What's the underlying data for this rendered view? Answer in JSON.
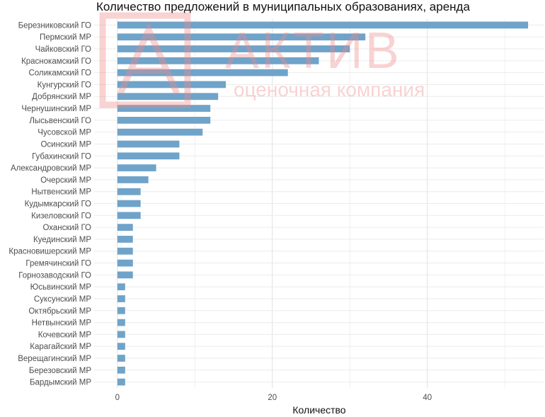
{
  "chart_data": {
    "type": "bar",
    "orientation": "horizontal",
    "title": "Количество предложений в муниципальных образованиях, аренда",
    "xlabel": "Количество",
    "ylabel": "",
    "xlim": [
      -3,
      55
    ],
    "xticks": [
      0,
      20,
      40
    ],
    "grid": true,
    "bar_color": "#6fa3c9",
    "categories": [
      "Березниковский ГО",
      "Пермский МР",
      "Чайковский ГО",
      "Краснокамский ГО",
      "Соликамский ГО",
      "Кунгурский ГО",
      "Добрянский МР",
      "Чернушинский МР",
      "Лысьвенский ГО",
      "Чусовской МР",
      "Осинский МР",
      "Губахинский ГО",
      "Александровский МР",
      "Очерский МР",
      "Нытвенский МР",
      "Кудымкарский ГО",
      "Кизеловский ГО",
      "Оханский ГО",
      "Куединский МР",
      "Красновишерский МР",
      "Гремячинский ГО",
      "Горнозаводский ГО",
      "Юсьвинский МР",
      "Суксунский МР",
      "Октябрьский МР",
      "Нетвынский МР",
      "Кочевский МР",
      "Карагайский МР",
      "Верещагинский МР",
      "Березовский МР",
      "Бардымский МР"
    ],
    "values": [
      53,
      32,
      30,
      26,
      22,
      14,
      13,
      12,
      12,
      11,
      8,
      8,
      5,
      4,
      3,
      3,
      3,
      2,
      2,
      2,
      2,
      2,
      1,
      1,
      1,
      1,
      1,
      1,
      1,
      1,
      1
    ]
  },
  "watermark": {
    "brand": "АКТИВ",
    "subtitle": "оценочная компания",
    "color": "#f08a8a"
  }
}
